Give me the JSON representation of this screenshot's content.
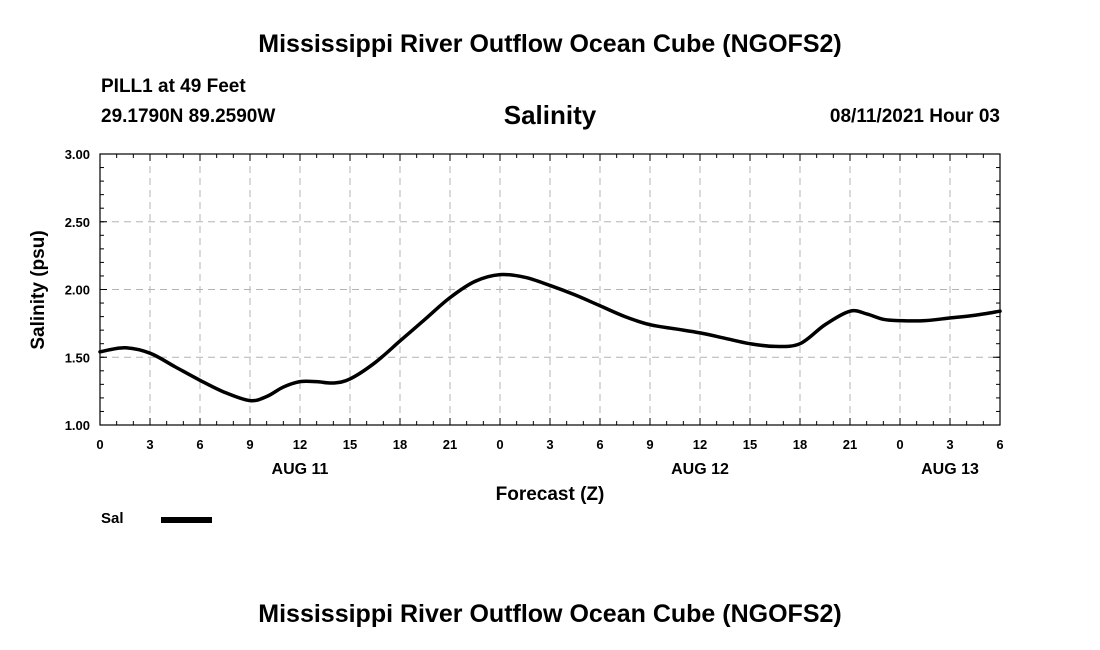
{
  "header": {
    "title": "Mississippi River Outflow Ocean Cube (NGOFS2)",
    "station": "PILL1 at 49 Feet",
    "coordinates": "29.1790N  89.2590W",
    "variable": "Salinity",
    "datetime": "08/11/2021 Hour 03"
  },
  "footer": {
    "title": "Mississippi River Outflow Ocean Cube (NGOFS2)"
  },
  "legend": {
    "label": "Sal",
    "color": "#000000"
  },
  "chart_data": {
    "type": "line",
    "title": "Salinity",
    "xlabel": "Forecast (Z)",
    "ylabel": "Salinity (psu)",
    "ylim": [
      1.0,
      3.0
    ],
    "xlim": [
      0,
      54
    ],
    "x_units": "hours since 2021-08-11 00Z",
    "grid": true,
    "yticks": [
      1.0,
      1.5,
      2.0,
      2.5,
      3.0
    ],
    "ytick_labels": [
      "1.00",
      "1.50",
      "2.00",
      "2.50",
      "3.00"
    ],
    "xticks": [
      0,
      3,
      6,
      9,
      12,
      15,
      18,
      21,
      24,
      27,
      30,
      33,
      36,
      39,
      42,
      45,
      48,
      51,
      54
    ],
    "xtick_labels": [
      "0",
      "3",
      "6",
      "9",
      "12",
      "15",
      "18",
      "21",
      "0",
      "3",
      "6",
      "9",
      "12",
      "15",
      "18",
      "21",
      "0",
      "3",
      "6"
    ],
    "day_labels": [
      {
        "x": 12,
        "label": "AUG 11"
      },
      {
        "x": 36,
        "label": "AUG 12"
      },
      {
        "x": 51,
        "label": "AUG 13"
      }
    ],
    "series": [
      {
        "name": "Sal",
        "color": "#000000",
        "x": [
          0,
          1.5,
          3,
          4.5,
          6,
          7.5,
          9,
          10,
          11,
          12,
          13,
          14,
          15,
          16.5,
          18,
          19.5,
          21,
          22.5,
          24,
          25.5,
          27,
          28.5,
          30,
          31.5,
          33,
          34.5,
          36,
          37.5,
          39,
          40.5,
          42,
          43.5,
          45,
          46,
          47,
          48,
          49.5,
          51,
          52.5,
          54
        ],
        "values": [
          1.54,
          1.57,
          1.53,
          1.43,
          1.33,
          1.24,
          1.18,
          1.21,
          1.28,
          1.32,
          1.32,
          1.31,
          1.34,
          1.46,
          1.62,
          1.78,
          1.94,
          2.06,
          2.11,
          2.09,
          2.03,
          1.96,
          1.88,
          1.8,
          1.74,
          1.71,
          1.68,
          1.64,
          1.6,
          1.58,
          1.6,
          1.74,
          1.84,
          1.82,
          1.78,
          1.77,
          1.77,
          1.79,
          1.81,
          1.84
        ]
      }
    ]
  }
}
